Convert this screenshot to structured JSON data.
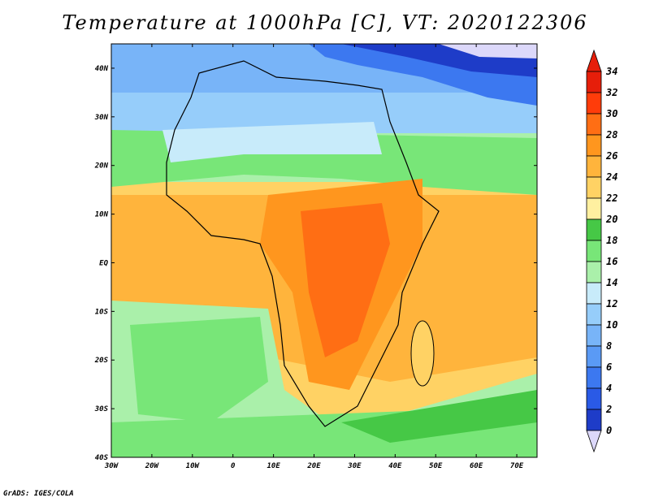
{
  "title": "Temperature at 1000hPa [C], VT: 2020122306",
  "credit": "GrADS: IGES/COLA",
  "map": {
    "region": "Africa",
    "lon_range": [
      -30,
      75
    ],
    "lat_range": [
      -40,
      45
    ],
    "lon_ticks": [
      {
        "value": -30,
        "label": "30W"
      },
      {
        "value": -20,
        "label": "20W"
      },
      {
        "value": -10,
        "label": "10W"
      },
      {
        "value": 0,
        "label": "0"
      },
      {
        "value": 10,
        "label": "10E"
      },
      {
        "value": 20,
        "label": "20E"
      },
      {
        "value": 30,
        "label": "30E"
      },
      {
        "value": 40,
        "label": "40E"
      },
      {
        "value": 50,
        "label": "50E"
      },
      {
        "value": 60,
        "label": "60E"
      },
      {
        "value": 70,
        "label": "70E"
      }
    ],
    "lat_ticks": [
      {
        "value": 40,
        "label": "40N"
      },
      {
        "value": 30,
        "label": "30N"
      },
      {
        "value": 20,
        "label": "20N"
      },
      {
        "value": 10,
        "label": "10N"
      },
      {
        "value": 0,
        "label": "EQ"
      },
      {
        "value": -10,
        "label": "10S"
      },
      {
        "value": -20,
        "label": "20S"
      },
      {
        "value": -30,
        "label": "30S"
      },
      {
        "value": -40,
        "label": "40S"
      }
    ]
  },
  "colorbar": {
    "levels": [
      0,
      2,
      4,
      6,
      8,
      10,
      12,
      14,
      16,
      18,
      20,
      22,
      24,
      26,
      28,
      30,
      32,
      34
    ],
    "colors": [
      "#1a1a8c",
      "#1e3cc8",
      "#2a5ae6",
      "#3c78f0",
      "#5a9af5",
      "#78b4f8",
      "#96cdfa",
      "#c8ebfa",
      "#aaf0aa",
      "#78e678",
      "#46c846",
      "#fff0a0",
      "#ffd264",
      "#ffb43c",
      "#ff961e",
      "#ff6e14",
      "#ff3c0a",
      "#e61e0a"
    ],
    "under_color": "#dcd8fa",
    "over_color": "#e61e0a"
  }
}
